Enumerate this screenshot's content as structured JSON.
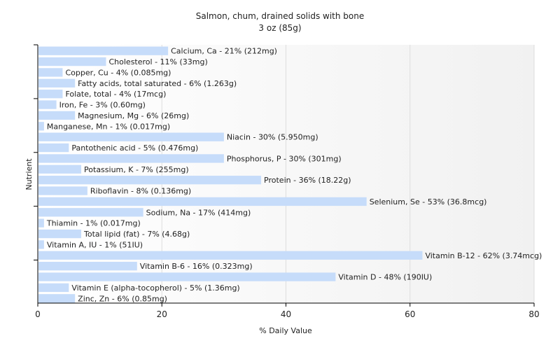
{
  "chart_data": {
    "type": "bar",
    "orientation": "horizontal",
    "title": "Salmon, chum, drained solids with bone",
    "subtitle": "3 oz (85g)",
    "xlabel": "% Daily Value",
    "ylabel": "Nutrient",
    "xlim": [
      0,
      80
    ],
    "xticks": [
      0,
      20,
      40,
      60,
      80
    ],
    "grid": true,
    "bar_color": "#c6dcfa",
    "categories": [
      "Calcium, Ca",
      "Cholesterol",
      "Copper, Cu",
      "Fatty acids, total saturated",
      "Folate, total",
      "Iron, Fe",
      "Magnesium, Mg",
      "Manganese, Mn",
      "Niacin",
      "Pantothenic acid",
      "Phosphorus, P",
      "Potassium, K",
      "Protein",
      "Riboflavin",
      "Selenium, Se",
      "Sodium, Na",
      "Thiamin",
      "Total lipid (fat)",
      "Vitamin A, IU",
      "Vitamin B-12",
      "Vitamin B-6",
      "Vitamin D",
      "Vitamin E (alpha-tocopherol)",
      "Zinc, Zn"
    ],
    "values": [
      21,
      11,
      4,
      6,
      4,
      3,
      6,
      1,
      30,
      5,
      30,
      7,
      36,
      8,
      53,
      17,
      1,
      7,
      1,
      62,
      16,
      48,
      5,
      6
    ],
    "labels": [
      "Calcium, Ca - 21% (212mg)",
      "Cholesterol - 11% (33mg)",
      "Copper, Cu - 4% (0.085mg)",
      "Fatty acids, total saturated - 6% (1.263g)",
      "Folate, total - 4% (17mcg)",
      "Iron, Fe - 3% (0.60mg)",
      "Magnesium, Mg - 6% (26mg)",
      "Manganese, Mn - 1% (0.017mg)",
      "Niacin - 30% (5.950mg)",
      "Pantothenic acid - 5% (0.476mg)",
      "Phosphorus, P - 30% (301mg)",
      "Potassium, K - 7% (255mg)",
      "Protein - 36% (18.22g)",
      "Riboflavin - 8% (0.136mg)",
      "Selenium, Se - 53% (36.8mcg)",
      "Sodium, Na - 17% (414mg)",
      "Thiamin - 1% (0.017mg)",
      "Total lipid (fat) - 7% (4.68g)",
      "Vitamin A, IU - 1% (51IU)",
      "Vitamin B-12 - 62% (3.74mcg)",
      "Vitamin B-6 - 16% (0.323mg)",
      "Vitamin D - 48% (190IU)",
      "Vitamin E (alpha-tocopherol) - 5% (1.36mg)",
      "Zinc, Zn - 6% (0.85mg)"
    ]
  }
}
